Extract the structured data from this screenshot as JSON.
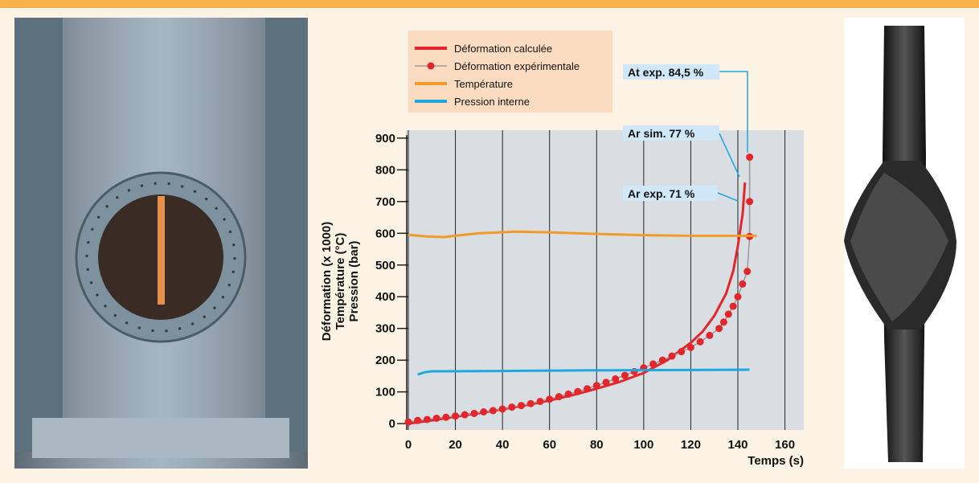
{
  "chart_data": {
    "type": "line",
    "y_label": [
      "Déformation (x 1000)",
      "Température (°C)",
      "Pression (bar)"
    ],
    "x_label": "Temps (s)",
    "xlim": [
      0,
      168
    ],
    "ylim": [
      -20,
      925
    ],
    "xticks": [
      0,
      20,
      40,
      60,
      80,
      100,
      120,
      140,
      160
    ],
    "yticks": [
      0,
      100,
      200,
      300,
      400,
      500,
      600,
      700,
      800,
      900
    ],
    "grid": true,
    "series": [
      {
        "name": "Déformation calculée",
        "color": "#e3262b",
        "markers": false,
        "x": [
          0,
          10,
          20,
          30,
          40,
          50,
          60,
          70,
          80,
          90,
          100,
          110,
          120,
          125,
          130,
          135,
          138,
          140,
          142,
          143
        ],
        "values": [
          0,
          10,
          22,
          33,
          45,
          58,
          73,
          90,
          110,
          132,
          160,
          200,
          255,
          290,
          340,
          410,
          480,
          560,
          660,
          760
        ]
      },
      {
        "name": "Déformation expérimentale",
        "color": "#e3262b",
        "line_color": "#999999",
        "markers": true,
        "x": [
          0,
          4,
          8,
          12,
          16,
          20,
          24,
          28,
          32,
          36,
          40,
          44,
          48,
          52,
          56,
          60,
          64,
          68,
          72,
          76,
          80,
          84,
          88,
          92,
          96,
          100,
          104,
          108,
          112,
          116,
          120,
          124,
          128,
          132,
          134,
          136,
          138,
          140,
          142,
          144,
          145,
          145,
          145
        ],
        "values": [
          5,
          10,
          13,
          17,
          20,
          24,
          28,
          32,
          37,
          41,
          46,
          52,
          57,
          63,
          70,
          77,
          85,
          93,
          101,
          110,
          120,
          130,
          141,
          152,
          164,
          176,
          188,
          200,
          213,
          227,
          240,
          258,
          278,
          300,
          320,
          345,
          370,
          400,
          440,
          480,
          590,
          700,
          840
        ]
      },
      {
        "name": "Température",
        "color": "#f39a2b",
        "markers": false,
        "x": [
          0,
          8,
          15,
          20,
          30,
          45,
          60,
          80,
          100,
          120,
          148
        ],
        "values": [
          595,
          590,
          588,
          592,
          600,
          605,
          603,
          598,
          594,
          592,
          592
        ]
      },
      {
        "name": "Pression interne",
        "color": "#1fa8e0",
        "markers": false,
        "x": [
          4,
          7,
          10,
          15,
          40,
          80,
          120,
          145
        ],
        "values": [
          155,
          162,
          165,
          165,
          166,
          168,
          169,
          170
        ]
      }
    ],
    "annotations": [
      "At exp. 84,5 %",
      "Ar sim. 77 %",
      "Ar exp. 71 %"
    ]
  }
}
